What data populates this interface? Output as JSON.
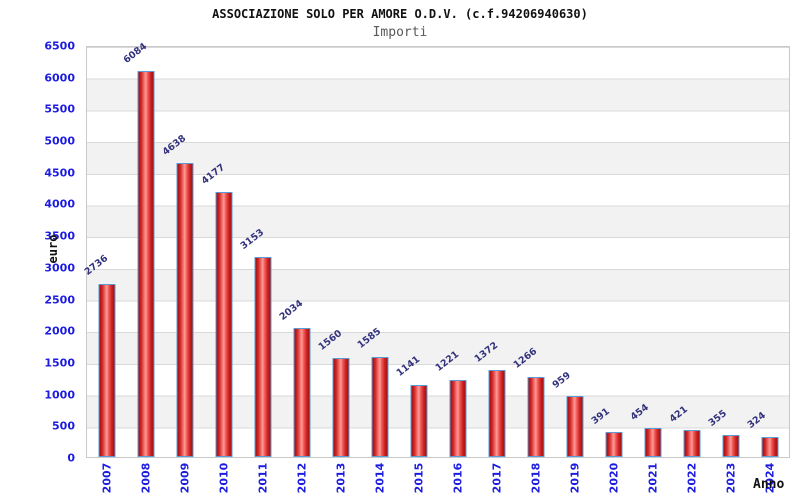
{
  "header": {
    "title": "ASSOCIAZIONE SOLO PER AMORE O.D.V. (c.f.94206940630)",
    "subtitle": "Importi"
  },
  "chart_data": {
    "type": "bar",
    "title": "ASSOCIAZIONE SOLO PER AMORE O.D.V. (c.f.94206940630)",
    "subtitle": "Importi",
    "xlabel": "Anno",
    "ylabel": "euro",
    "categories": [
      "2007",
      "2008",
      "2009",
      "2010",
      "2011",
      "2012",
      "2013",
      "2014",
      "2015",
      "2016",
      "2017",
      "2018",
      "2019",
      "2020",
      "2021",
      "2022",
      "2023",
      "2024"
    ],
    "values": [
      2736,
      6084,
      4638,
      4177,
      3153,
      2034,
      1560,
      1585,
      1141,
      1221,
      1372,
      1266,
      959,
      391,
      454,
      421,
      355,
      324
    ],
    "ylim": [
      0,
      6500
    ],
    "ytick_step": 500,
    "grid": "alternating-horizontal-bands",
    "legend": "none",
    "colors": {
      "bar_fill_dark": "#a31010",
      "bar_fill_light": "#ff9a96",
      "bar_border": "#5b9bd5",
      "axis_tick_label": "#1c1ce0",
      "value_label": "#33337d",
      "band_alt": "#f2f2f2",
      "grid_line": "#d9d9d9",
      "title_color": "#111111",
      "subtitle_color": "#5a5a5a"
    }
  }
}
